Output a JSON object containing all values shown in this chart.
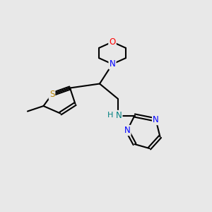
{
  "bg_color": "#e8e8e8",
  "bond_color": "#000000",
  "bond_width": 1.5,
  "atoms": {
    "S": {
      "color": "#b8860b",
      "size": 9
    },
    "O": {
      "color": "#ff0000",
      "size": 9
    },
    "N": {
      "color": "#0000ff",
      "size": 9
    },
    "NH": {
      "color": "#008080",
      "size": 9
    },
    "C": {
      "color": "#000000",
      "size": 0
    }
  },
  "fig_size": [
    3.0,
    3.0
  ],
  "dpi": 100
}
